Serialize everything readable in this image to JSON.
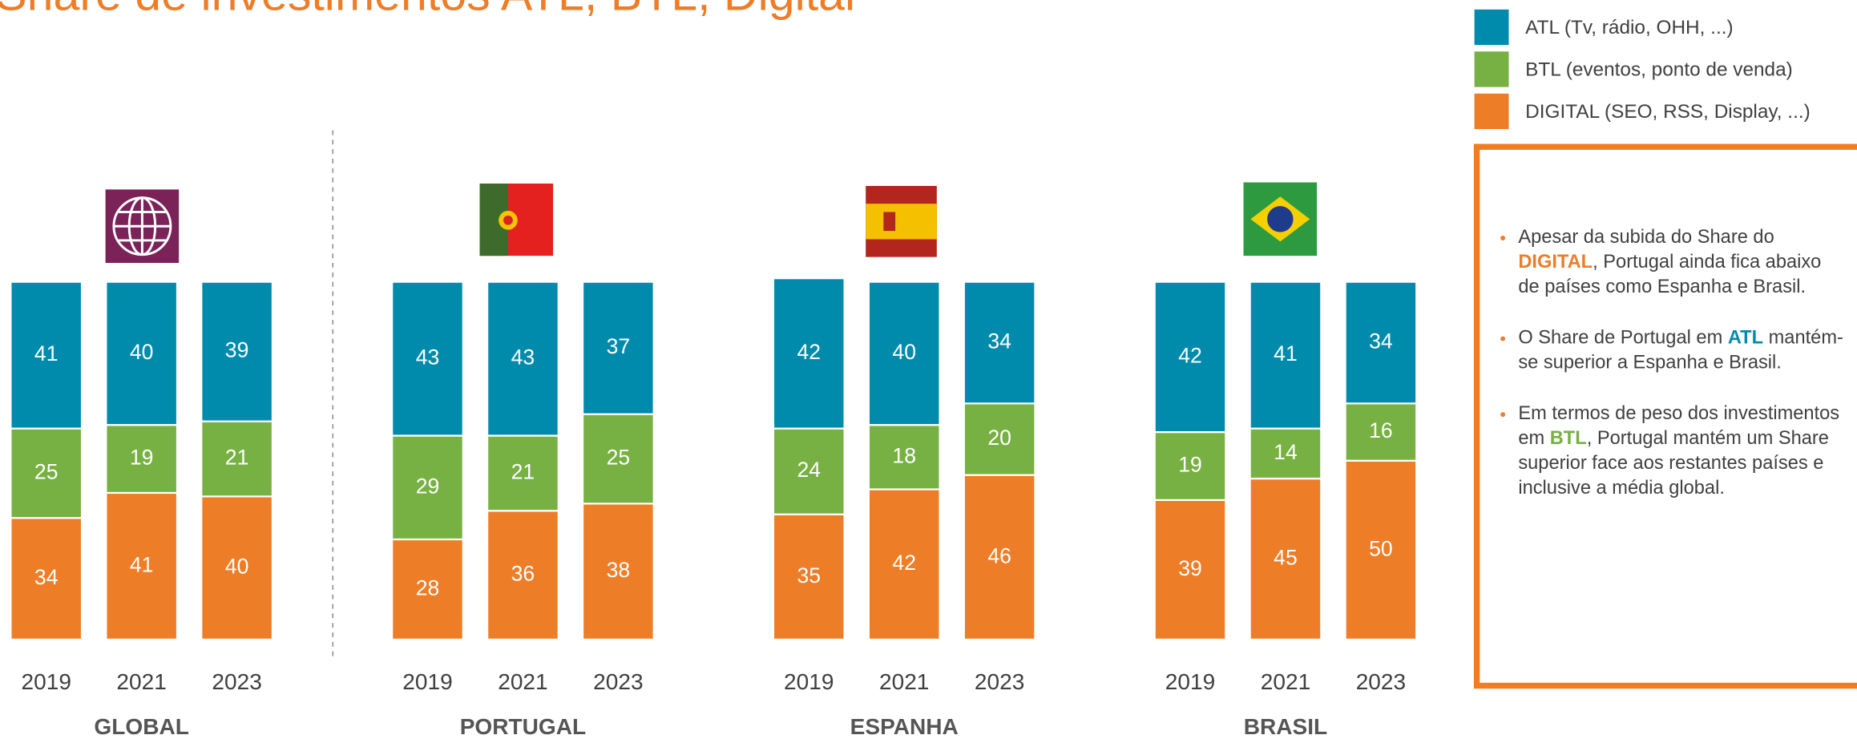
{
  "title": "Share de investimentos ATL, BTL, Digital",
  "chart_data": [
    {
      "type": "bar",
      "stacked": true,
      "xlabel": "GLOBAL",
      "categories": [
        "2019",
        "2021",
        "2023"
      ],
      "ylim": [
        0,
        100
      ],
      "series": [
        {
          "name": "ATL (Tv, rádio, OHH, ...)",
          "color": "#008bac",
          "values": [
            41,
            40,
            39
          ]
        },
        {
          "name": "BTL (eventos, ponto de venda)",
          "color": "#77b043",
          "values": [
            25,
            19,
            21
          ]
        },
        {
          "name": "DIGITAL (SEO, RSS, Display, ...)",
          "color": "#ee7d27",
          "values": [
            34,
            41,
            40
          ]
        }
      ]
    },
    {
      "type": "bar",
      "stacked": true,
      "xlabel": "PORTUGAL",
      "categories": [
        "2019",
        "2021",
        "2023"
      ],
      "ylim": [
        0,
        100
      ],
      "series": [
        {
          "name": "ATL",
          "color": "#008bac",
          "values": [
            43,
            43,
            37
          ]
        },
        {
          "name": "BTL",
          "color": "#77b043",
          "values": [
            29,
            21,
            25
          ]
        },
        {
          "name": "DIGITAL",
          "color": "#ee7d27",
          "values": [
            28,
            36,
            38
          ]
        }
      ]
    },
    {
      "type": "bar",
      "stacked": true,
      "xlabel": "ESPANHA",
      "categories": [
        "2019",
        "2021",
        "2023"
      ],
      "ylim": [
        0,
        100
      ],
      "series": [
        {
          "name": "ATL",
          "color": "#008bac",
          "values": [
            42,
            40,
            34
          ]
        },
        {
          "name": "BTL",
          "color": "#77b043",
          "values": [
            24,
            18,
            20
          ]
        },
        {
          "name": "DIGITAL",
          "color": "#ee7d27",
          "values": [
            35,
            42,
            46
          ]
        }
      ]
    },
    {
      "type": "bar",
      "stacked": true,
      "xlabel": "BRASIL",
      "categories": [
        "2019",
        "2021",
        "2023"
      ],
      "ylim": [
        0,
        100
      ],
      "series": [
        {
          "name": "ATL",
          "color": "#008bac",
          "values": [
            42,
            41,
            34
          ]
        },
        {
          "name": "BTL",
          "color": "#77b043",
          "values": [
            19,
            14,
            16
          ]
        },
        {
          "name": "DIGITAL",
          "color": "#ee7d27",
          "values": [
            39,
            45,
            50
          ]
        }
      ]
    }
  ],
  "notes": [
    [
      "Apesar da subida do Share do ",
      "DIGITAL",
      ", Portugal ainda fica abaixo de países como Espanha e Brasil."
    ],
    [
      "O Share de Portugal em ",
      "ATL",
      " mantém-se superior a Espanha e Brasil."
    ],
    [
      "Em termos de peso dos investimentos em ",
      "BTL",
      ", Portugal mantém um Share superior face aos restantes países e inclusive a média global."
    ]
  ]
}
